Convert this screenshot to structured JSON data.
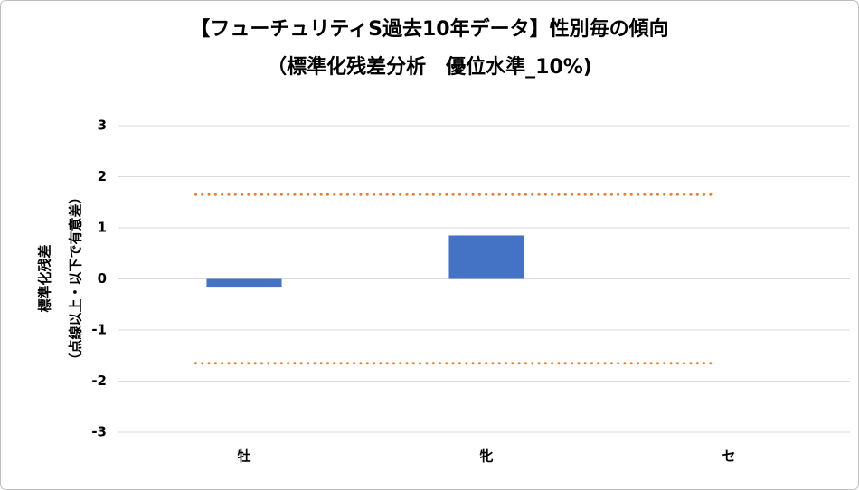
{
  "chart_data": {
    "type": "bar",
    "title": "【フューチュリティS過去10年データ】性別毎の傾向",
    "subtitle": "（標準化残差分析　優位水準_10%)",
    "y_label": [
      "標準化残差",
      "（点線以上・以下で有意差）"
    ],
    "categories": [
      "牡",
      "牝",
      "セ"
    ],
    "values": [
      -0.17,
      0.85,
      0
    ],
    "color": "#4472c4",
    "ylim": [
      -3,
      3
    ],
    "yticks": [
      -3,
      -2,
      -1,
      0,
      1,
      2,
      3
    ],
    "grid": true,
    "reference_lines": [
      {
        "value": 1.65,
        "color": "#ed7d31"
      },
      {
        "value": -1.65,
        "color": "#ed7d31"
      }
    ]
  }
}
